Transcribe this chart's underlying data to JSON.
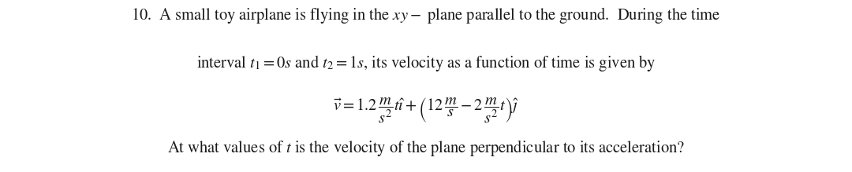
{
  "figsize": [
    10.8,
    2.19
  ],
  "dpi": 100,
  "background_color": "#ffffff",
  "text_color": "#1a1a1a",
  "line1": "10. A small toy airplane is flying in the $xy-$ plane parallel to the ground. During the time",
  "line2": "interval $t_1 = 0s$ and $t_2 = 1s$, its velocity as a function of time is given by",
  "line3": "$\\vec{v} = 1.2\\,\\dfrac{m}{s^2}t\\hat{\\imath} + \\left(12\\,\\dfrac{m}{s} - 2\\,\\dfrac{m}{s^2}t\\right)\\hat{\\jmath}$",
  "line4": "At what values of $t$ is the velocity of the plane perpendicular to its acceleration?",
  "font_size_main": 14.8,
  "font_family": "STIXGeneral"
}
